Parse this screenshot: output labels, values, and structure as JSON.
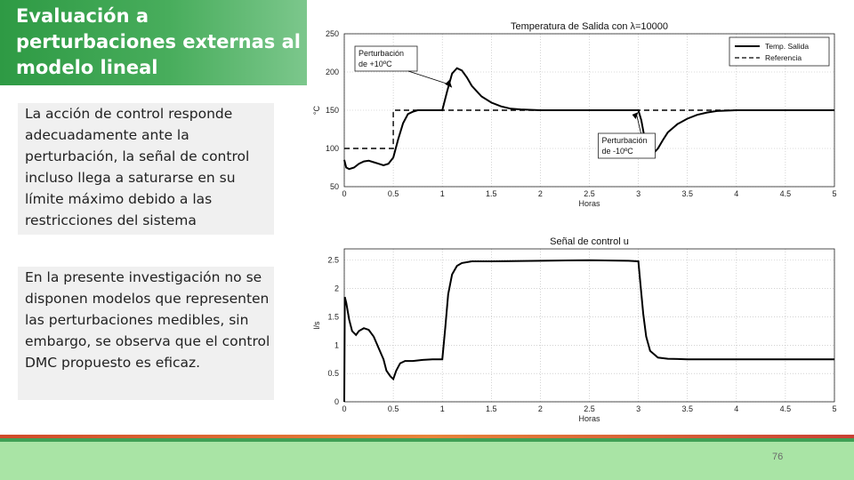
{
  "slide": {
    "title": "Evaluación a perturbaciones externas al modelo lineal",
    "paragraph_1": "La acción de control responde adecuadamente ante la perturbación, la señal de control incluso llega a saturarse en su límite máximo debido a las restricciones del sistema",
    "paragraph_2": "En la presente investigación no se disponen modelos que representen las perturbaciones medibles, sin embargo, se observa que el control DMC propuesto es eficaz.",
    "page_number": "76"
  },
  "chart_data": [
    {
      "type": "line",
      "title": "Temperatura de Salida con λ=10000",
      "xlabel": "Horas",
      "ylabel": "°C",
      "xlim": [
        0,
        5
      ],
      "ylim": [
        50,
        250
      ],
      "xticks": [
        "0",
        "0.5",
        "1",
        "1.5",
        "2",
        "2.5",
        "3",
        "3.5",
        "4",
        "4.5",
        "5"
      ],
      "yticks": [
        "50",
        "100",
        "150",
        "200",
        "250"
      ],
      "grid": true,
      "legend_position": "top-right",
      "series": [
        {
          "name": "Temp. Salida",
          "style": "solid",
          "x": [
            0,
            0.02,
            0.05,
            0.1,
            0.15,
            0.2,
            0.25,
            0.3,
            0.35,
            0.4,
            0.45,
            0.5,
            0.55,
            0.6,
            0.65,
            0.7,
            0.75,
            0.8,
            0.85,
            0.9,
            0.95,
            1.0,
            1.05,
            1.1,
            1.15,
            1.2,
            1.25,
            1.3,
            1.4,
            1.5,
            1.6,
            1.7,
            1.8,
            2.0,
            2.5,
            2.9,
            3.0,
            3.03,
            3.06,
            3.1,
            3.15,
            3.2,
            3.25,
            3.3,
            3.4,
            3.5,
            3.6,
            3.7,
            3.8,
            4.0,
            4.5,
            5.0
          ],
          "values": [
            85,
            75,
            73,
            75,
            80,
            83,
            84,
            82,
            80,
            78,
            80,
            88,
            112,
            133,
            145,
            148,
            150,
            150,
            150,
            150,
            150,
            150,
            175,
            198,
            205,
            202,
            193,
            182,
            168,
            160,
            155,
            152,
            151,
            150,
            150,
            150,
            150,
            137,
            116,
            98,
            93,
            100,
            111,
            121,
            132,
            139,
            144,
            147,
            149,
            150,
            150,
            150
          ]
        },
        {
          "name": "Referencia",
          "style": "dashed",
          "x": [
            0,
            0.5,
            0.5,
            3.0,
            3.0,
            5.0
          ],
          "values": [
            100,
            100,
            150,
            150,
            150,
            150
          ]
        }
      ],
      "annotations": [
        {
          "text": "Perturbación de +10ºC",
          "x": 1.1,
          "y": 198
        },
        {
          "text": "Perturbación de -10ºC",
          "x": 3.0,
          "y": 150
        }
      ]
    },
    {
      "type": "line",
      "title": "Señal de control u",
      "xlabel": "Horas",
      "ylabel": "l/s",
      "xlim": [
        0,
        5
      ],
      "ylim": [
        0,
        2.7
      ],
      "xticks": [
        "0",
        "0.5",
        "1",
        "1.5",
        "2",
        "2.5",
        "3",
        "3.5",
        "4",
        "4.5",
        "5"
      ],
      "yticks": [
        "0",
        "0.5",
        "1",
        "1.5",
        "2",
        "2.5"
      ],
      "grid": true,
      "series": [
        {
          "name": "",
          "style": "solid",
          "x": [
            0,
            0.005,
            0.02,
            0.05,
            0.08,
            0.12,
            0.15,
            0.2,
            0.25,
            0.3,
            0.35,
            0.4,
            0.43,
            0.47,
            0.5,
            0.53,
            0.57,
            0.62,
            0.7,
            0.8,
            0.9,
            1.0,
            1.03,
            1.06,
            1.1,
            1.15,
            1.2,
            1.3,
            1.5,
            2.0,
            2.5,
            2.9,
            3.0,
            3.02,
            3.05,
            3.08,
            3.12,
            3.2,
            3.3,
            3.5,
            4.0,
            4.5,
            5.0
          ],
          "values": [
            0,
            1.85,
            1.75,
            1.45,
            1.25,
            1.18,
            1.25,
            1.3,
            1.27,
            1.15,
            0.95,
            0.75,
            0.55,
            0.45,
            0.4,
            0.55,
            0.68,
            0.72,
            0.72,
            0.74,
            0.75,
            0.75,
            1.3,
            1.9,
            2.25,
            2.4,
            2.45,
            2.48,
            2.48,
            2.49,
            2.5,
            2.49,
            2.48,
            2.1,
            1.55,
            1.15,
            0.9,
            0.78,
            0.76,
            0.75,
            0.75,
            0.75,
            0.75
          ]
        }
      ]
    }
  ]
}
